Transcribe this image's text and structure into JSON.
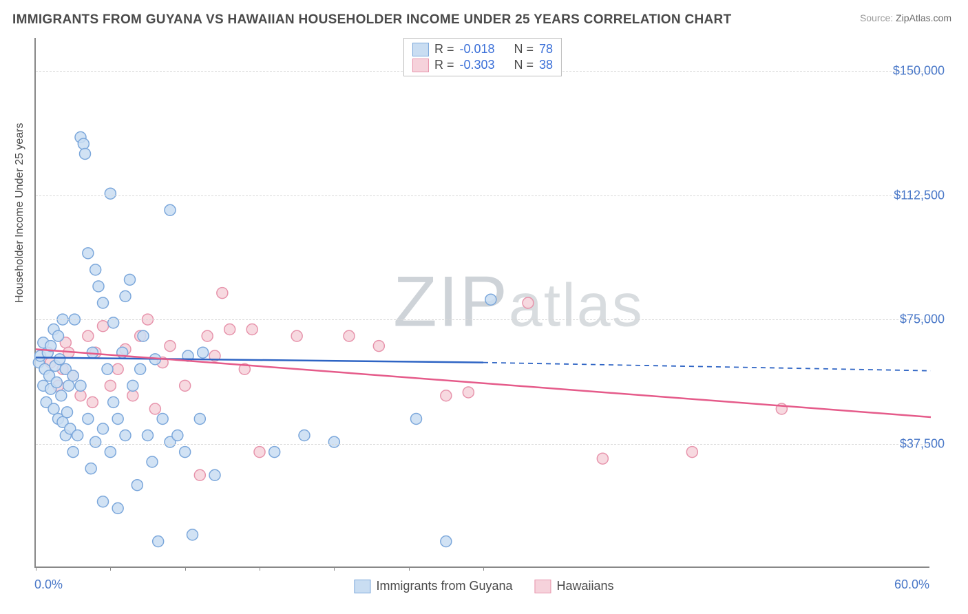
{
  "title": "IMMIGRANTS FROM GUYANA VS HAWAIIAN HOUSEHOLDER INCOME UNDER 25 YEARS CORRELATION CHART",
  "source_label": "Source:",
  "source_value": "ZipAtlas.com",
  "watermark": "ZIPatlas",
  "chart": {
    "type": "scatter",
    "ylabel": "Householder Income Under 25 years",
    "x_min_label": "0.0%",
    "x_max_label": "60.0%",
    "xlim": [
      0,
      60
    ],
    "ylim": [
      0,
      160000
    ],
    "y_ticks": [
      37500,
      75000,
      112500,
      150000
    ],
    "y_tick_labels": [
      "$37,500",
      "$75,000",
      "$112,500",
      "$150,000"
    ],
    "x_tick_positions": [
      0,
      5,
      10,
      15,
      20,
      25,
      30
    ],
    "background_color": "#ffffff",
    "grid_color": "#d8d8d8",
    "axis_color": "#888888",
    "marker_radius": 8,
    "marker_stroke_width": 1.5,
    "trend_line_width": 2.5
  },
  "series": [
    {
      "name": "Immigrants from Guyana",
      "fill": "#c9ddf2",
      "stroke": "#7ba7db",
      "r_value": "-0.018",
      "n_value": "78",
      "trend": {
        "x1": 0,
        "y1": 63500,
        "x2": 30,
        "y2": 62000,
        "dash_to_x": 60,
        "dash_to_y": 59500,
        "color": "#2e64c4"
      },
      "points": [
        [
          0.2,
          62000
        ],
        [
          0.3,
          64000
        ],
        [
          0.5,
          55000
        ],
        [
          0.5,
          68000
        ],
        [
          0.6,
          60000
        ],
        [
          0.7,
          50000
        ],
        [
          0.8,
          65000
        ],
        [
          0.9,
          58000
        ],
        [
          1.0,
          67000
        ],
        [
          1.0,
          54000
        ],
        [
          1.2,
          72000
        ],
        [
          1.2,
          48000
        ],
        [
          1.3,
          61000
        ],
        [
          1.4,
          56000
        ],
        [
          1.5,
          70000
        ],
        [
          1.5,
          45000
        ],
        [
          1.6,
          63000
        ],
        [
          1.7,
          52000
        ],
        [
          1.8,
          75000
        ],
        [
          1.8,
          44000
        ],
        [
          2.0,
          40000
        ],
        [
          2.0,
          60000
        ],
        [
          2.1,
          47000
        ],
        [
          2.2,
          55000
        ],
        [
          2.3,
          42000
        ],
        [
          2.5,
          35000
        ],
        [
          2.5,
          58000
        ],
        [
          2.6,
          75000
        ],
        [
          2.8,
          40000
        ],
        [
          3.0,
          130000
        ],
        [
          3.0,
          55000
        ],
        [
          3.2,
          128000
        ],
        [
          3.3,
          125000
        ],
        [
          3.5,
          95000
        ],
        [
          3.5,
          45000
        ],
        [
          3.7,
          30000
        ],
        [
          3.8,
          65000
        ],
        [
          4.0,
          90000
        ],
        [
          4.0,
          38000
        ],
        [
          4.2,
          85000
        ],
        [
          4.5,
          42000
        ],
        [
          4.5,
          20000
        ],
        [
          4.8,
          60000
        ],
        [
          5.0,
          113000
        ],
        [
          5.0,
          35000
        ],
        [
          5.2,
          50000
        ],
        [
          5.5,
          45000
        ],
        [
          5.5,
          18000
        ],
        [
          5.8,
          65000
        ],
        [
          6.0,
          82000
        ],
        [
          6.0,
          40000
        ],
        [
          6.3,
          87000
        ],
        [
          6.5,
          55000
        ],
        [
          6.8,
          25000
        ],
        [
          7.0,
          60000
        ],
        [
          7.2,
          70000
        ],
        [
          7.5,
          40000
        ],
        [
          7.8,
          32000
        ],
        [
          8.0,
          63000
        ],
        [
          8.2,
          8000
        ],
        [
          8.5,
          45000
        ],
        [
          9.0,
          108000
        ],
        [
          9.0,
          38000
        ],
        [
          9.5,
          40000
        ],
        [
          10.0,
          35000
        ],
        [
          10.2,
          64000
        ],
        [
          10.5,
          10000
        ],
        [
          11.0,
          45000
        ],
        [
          11.2,
          65000
        ],
        [
          12.0,
          28000
        ],
        [
          16.0,
          35000
        ],
        [
          18.0,
          40000
        ],
        [
          20.0,
          38000
        ],
        [
          25.5,
          45000
        ],
        [
          27.5,
          8000
        ],
        [
          30.5,
          81000
        ],
        [
          4.5,
          80000
        ],
        [
          5.2,
          74000
        ]
      ]
    },
    {
      "name": "Hawaiians",
      "fill": "#f6d2db",
      "stroke": "#e794ac",
      "r_value": "-0.303",
      "n_value": "38",
      "trend": {
        "x1": 0,
        "y1": 66000,
        "x2": 60,
        "y2": 45500,
        "color": "#e55b8a"
      },
      "points": [
        [
          1.0,
          62000
        ],
        [
          1.5,
          55000
        ],
        [
          1.8,
          60000
        ],
        [
          2.0,
          68000
        ],
        [
          2.2,
          65000
        ],
        [
          2.5,
          58000
        ],
        [
          3.0,
          52000
        ],
        [
          3.5,
          70000
        ],
        [
          3.8,
          50000
        ],
        [
          4.0,
          65000
        ],
        [
          4.5,
          73000
        ],
        [
          5.0,
          55000
        ],
        [
          5.5,
          60000
        ],
        [
          6.0,
          66000
        ],
        [
          6.5,
          52000
        ],
        [
          7.0,
          70000
        ],
        [
          7.5,
          75000
        ],
        [
          8.0,
          48000
        ],
        [
          8.5,
          62000
        ],
        [
          9.0,
          67000
        ],
        [
          10.0,
          55000
        ],
        [
          11.0,
          28000
        ],
        [
          11.5,
          70000
        ],
        [
          12.0,
          64000
        ],
        [
          12.5,
          83000
        ],
        [
          13.0,
          72000
        ],
        [
          14.0,
          60000
        ],
        [
          14.5,
          72000
        ],
        [
          15.0,
          35000
        ],
        [
          21.0,
          70000
        ],
        [
          23.0,
          67000
        ],
        [
          27.5,
          52000
        ],
        [
          29.0,
          53000
        ],
        [
          33.0,
          80000
        ],
        [
          38.0,
          33000
        ],
        [
          44.0,
          35000
        ],
        [
          50.0,
          48000
        ],
        [
          17.5,
          70000
        ]
      ]
    }
  ],
  "stats_box": {
    "r_label": "R  =",
    "n_label": "N  ="
  },
  "legend": {
    "series1_label": "Immigrants from Guyana",
    "series2_label": "Hawaiians"
  }
}
